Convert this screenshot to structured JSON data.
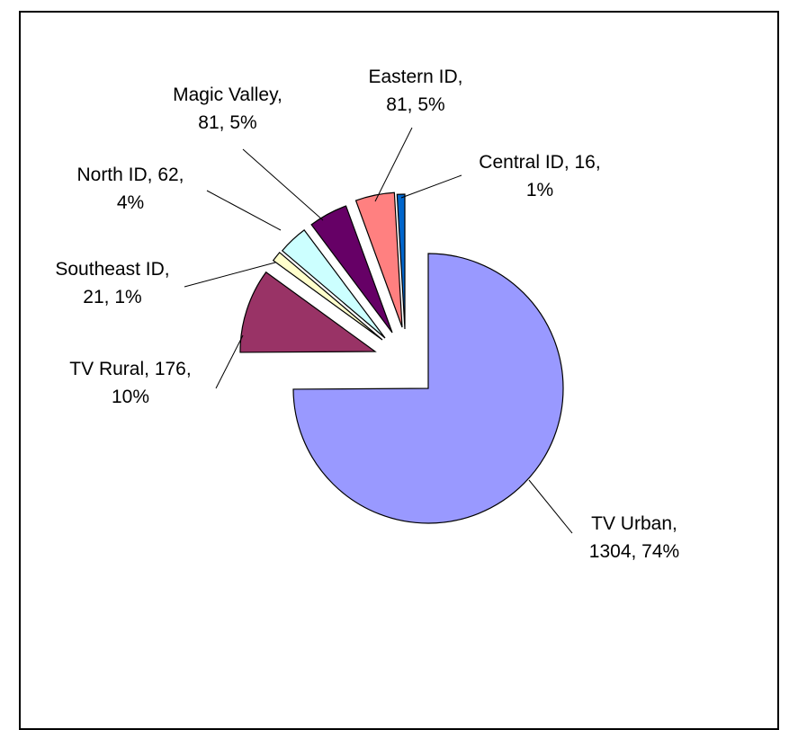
{
  "chart_data": {
    "type": "pie",
    "title": "",
    "legend": "none",
    "start_angle_deg": 0,
    "direction": "clockwise",
    "slices": [
      {
        "name": "TV Urban",
        "value": 1304,
        "percent": "74%",
        "color": "#9999FF",
        "exploded": true,
        "label_lines": [
          "TV Urban,",
          "1304, 74%"
        ]
      },
      {
        "name": "TV Rural",
        "value": 176,
        "percent": "10%",
        "color": "#993366",
        "exploded": true,
        "label_lines": [
          "TV Rural, 176,",
          "10%"
        ]
      },
      {
        "name": "Southeast ID",
        "value": 21,
        "percent": "1%",
        "color": "#FFFFCC",
        "exploded": true,
        "label_lines": [
          "Southeast ID,",
          "21, 1%"
        ]
      },
      {
        "name": "North ID",
        "value": 62,
        "percent": "4%",
        "color": "#CCFFFF",
        "exploded": true,
        "label_lines": [
          "North ID, 62,",
          "4%"
        ]
      },
      {
        "name": "Magic Valley",
        "value": 81,
        "percent": "5%",
        "color": "#660066",
        "exploded": true,
        "label_lines": [
          "Magic Valley,",
          "81, 5%"
        ]
      },
      {
        "name": "Eastern ID",
        "value": 81,
        "percent": "5%",
        "color": "#FF8080",
        "exploded": true,
        "label_lines": [
          "Eastern ID,",
          "81, 5%"
        ]
      },
      {
        "name": "Central ID",
        "value": 16,
        "percent": "1%",
        "color": "#0066CC",
        "exploded": true,
        "label_lines": [
          "Central ID, 16,",
          "1%"
        ]
      }
    ]
  }
}
